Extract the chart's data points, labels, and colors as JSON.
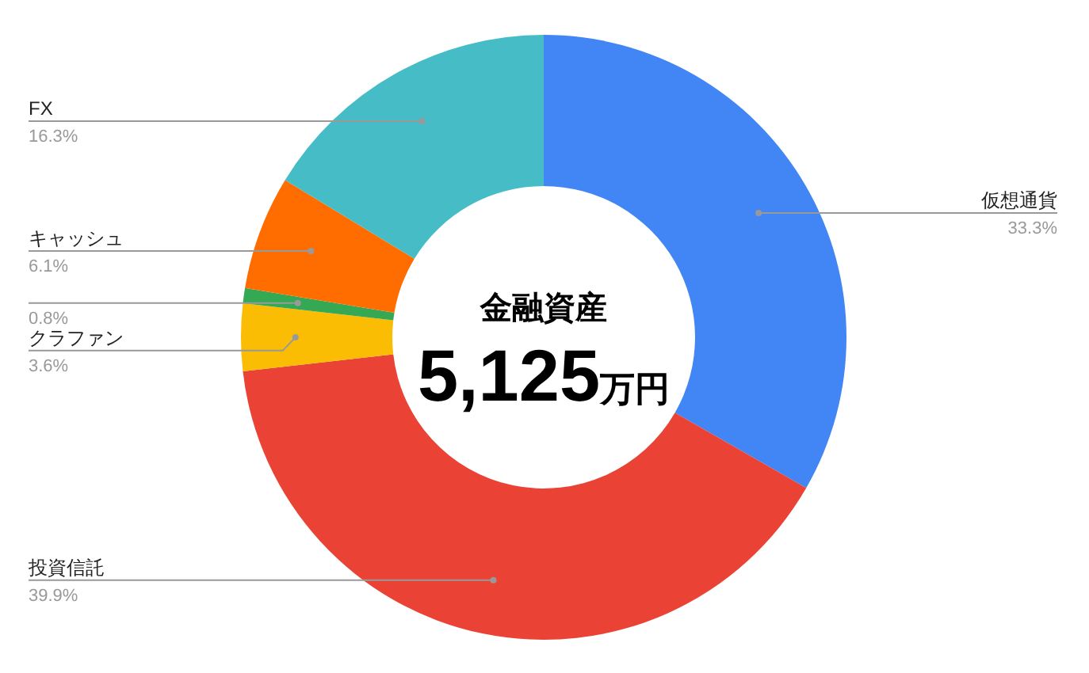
{
  "chart_data": {
    "type": "donut",
    "categories": [
      "仮想通貨",
      "投資信託",
      "クラファン",
      null,
      "キャッシュ",
      "FX"
    ],
    "values": [
      33.3,
      39.9,
      3.6,
      0.8,
      6.1,
      16.3
    ],
    "colors": [
      "#4285f4",
      "#ea4335",
      "#fbbc04",
      "#34a853",
      "#ff6d01",
      "#46bdc6"
    ],
    "value_labels": [
      "33.3%",
      "39.9%",
      "3.6%",
      "0.8%",
      "6.1%",
      "16.3%"
    ],
    "annotations": [
      "金融資産",
      "5,125万円"
    ]
  }
}
